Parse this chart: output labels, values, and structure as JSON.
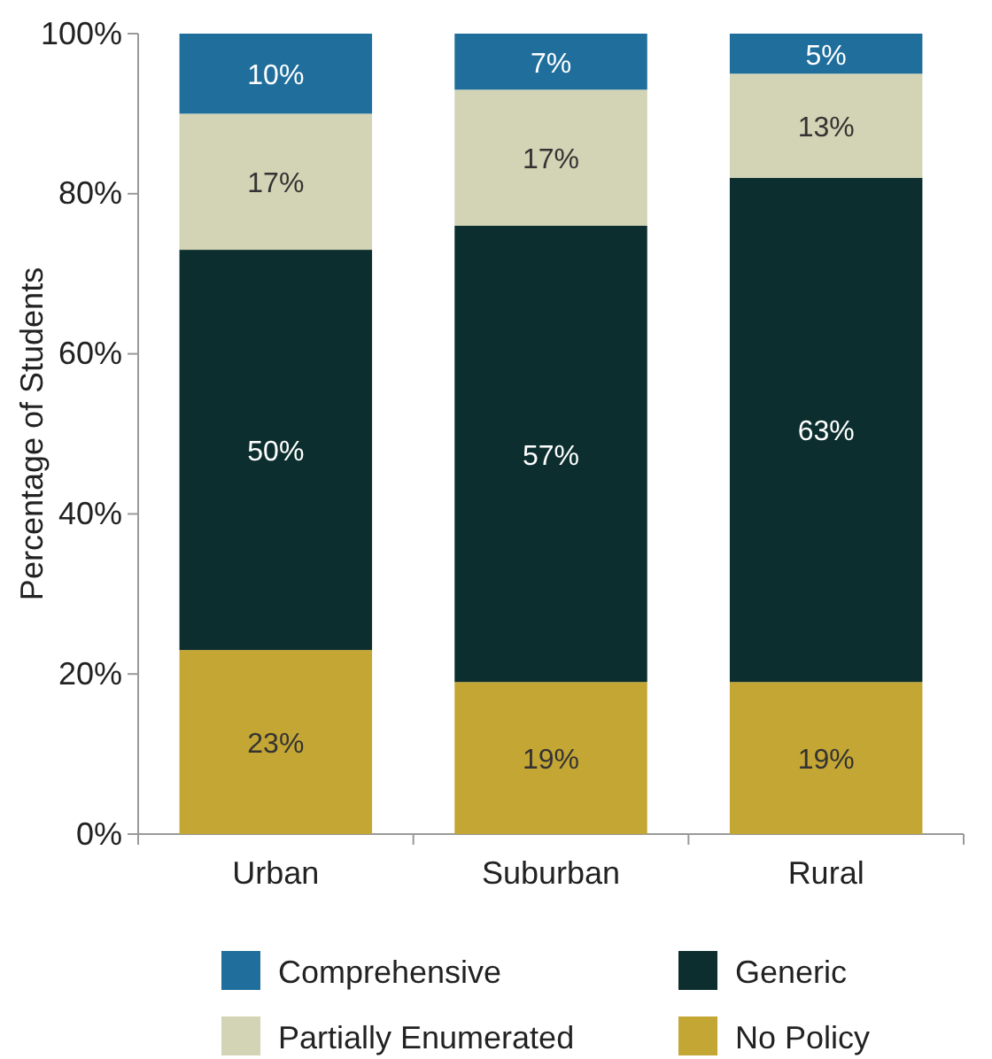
{
  "chart_data": {
    "type": "bar",
    "stacked": true,
    "ylabel": "Percentage of Students",
    "categories": [
      "Urban",
      "Suburban",
      "Rural"
    ],
    "series": [
      {
        "name": "No Policy",
        "color": "#c4a634",
        "values": [
          23,
          19,
          19
        ],
        "value_labels": [
          "23%",
          "19%",
          "19%"
        ]
      },
      {
        "name": "Generic",
        "color": "#0d2e2e",
        "values": [
          50,
          57,
          63
        ],
        "value_labels": [
          "50%",
          "57%",
          "63%"
        ]
      },
      {
        "name": "Partially Enumerated",
        "color": "#d3d3b5",
        "values": [
          17,
          17,
          13
        ],
        "value_labels": [
          "17%",
          "17%",
          "13%"
        ]
      },
      {
        "name": "Comprehensive",
        "color": "#1f6e9c",
        "values": [
          10,
          7,
          5
        ],
        "value_labels": [
          "10%",
          "7%",
          "5%"
        ]
      }
    ],
    "ylim": [
      0,
      100
    ],
    "yticks": [
      {
        "value": 0,
        "label": "0%"
      },
      {
        "value": 20,
        "label": "20%"
      },
      {
        "value": 40,
        "label": "40%"
      },
      {
        "value": 60,
        "label": "60%"
      },
      {
        "value": 80,
        "label": "80%"
      },
      {
        "value": 100,
        "label": "100%"
      }
    ],
    "legend": "bottom"
  }
}
